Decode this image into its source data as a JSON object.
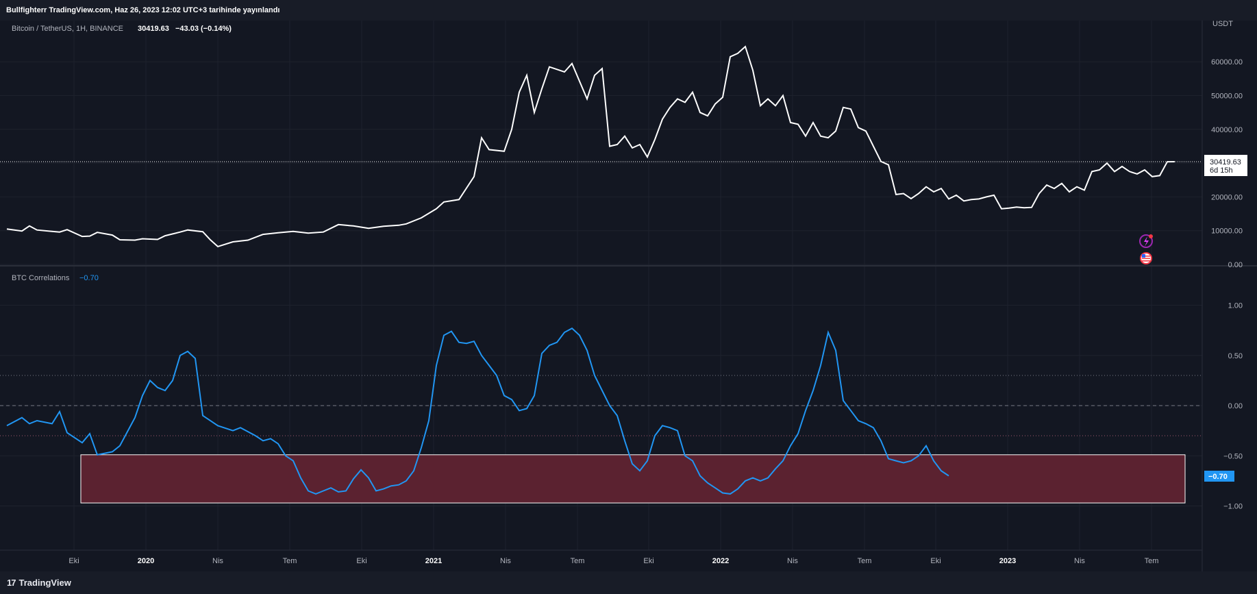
{
  "header": {
    "published_text": "Bullfighterr TradingView.com, Haz 26, 2023 12:02 UTC+3 tarihinde yayınlandı"
  },
  "main_pane": {
    "symbol": "Bitcoin / TetherUS, 1H, BINANCE",
    "last_price": "30419.63",
    "change": "−43.03 (−0.14%)",
    "currency_label": "USDT",
    "price_badge": "30419.63",
    "countdown_badge": "6d 15h",
    "line_color": "#ffffff"
  },
  "indicator_pane": {
    "name": "BTC Correlations",
    "value": "−0.70",
    "badge": "−0.70",
    "line_color": "#2196f3",
    "zone_fill": "#5b2230"
  },
  "footer": {
    "logo_text": "TradingView",
    "logo_mark": "17"
  },
  "icons": [
    "flash-icon",
    "us-flag-icon"
  ],
  "chart_data": [
    {
      "type": "line",
      "title": "Bitcoin / TetherUS, 1H, BINANCE",
      "ylabel": "USDT",
      "ylim": [
        0,
        70000
      ],
      "yticks": [
        "0.00",
        "10000.00",
        "20000.00",
        "30000.00",
        "40000.00",
        "50000.00",
        "60000.00"
      ],
      "xticks": [
        "Eki",
        "2020",
        "Nis",
        "Tem",
        "Eki",
        "2021",
        "Nis",
        "Tem",
        "Eki",
        "2022",
        "Nis",
        "Tem",
        "Eki",
        "2023",
        "Nis",
        "Tem"
      ],
      "x_range": [
        "2019-07",
        "2023-07"
      ],
      "series": [
        {
          "values": [
            [
              0.0,
              10500
            ],
            [
              0.02,
              9900
            ],
            [
              0.03,
              11400
            ],
            [
              0.04,
              10200
            ],
            [
              0.06,
              9800
            ],
            [
              0.07,
              9600
            ],
            [
              0.08,
              10300
            ],
            [
              0.1,
              8300
            ],
            [
              0.11,
              8400
            ],
            [
              0.12,
              9500
            ],
            [
              0.14,
              8700
            ],
            [
              0.15,
              7300
            ],
            [
              0.17,
              7200
            ],
            [
              0.18,
              7600
            ],
            [
              0.2,
              7400
            ],
            [
              0.21,
              8500
            ],
            [
              0.23,
              9600
            ],
            [
              0.24,
              10200
            ],
            [
              0.26,
              9700
            ],
            [
              0.27,
              7300
            ],
            [
              0.28,
              5300
            ],
            [
              0.3,
              6700
            ],
            [
              0.32,
              7200
            ],
            [
              0.34,
              8900
            ],
            [
              0.36,
              9400
            ],
            [
              0.38,
              9800
            ],
            [
              0.4,
              9300
            ],
            [
              0.42,
              9600
            ],
            [
              0.44,
              11800
            ],
            [
              0.46,
              11400
            ],
            [
              0.48,
              10700
            ],
            [
              0.5,
              11300
            ],
            [
              0.52,
              11600
            ],
            [
              0.53,
              12000
            ],
            [
              0.55,
              13800
            ],
            [
              0.57,
              16500
            ],
            [
              0.58,
              18500
            ],
            [
              0.6,
              19200
            ],
            [
              0.62,
              26000
            ],
            [
              0.63,
              37500
            ],
            [
              0.64,
              34000
            ],
            [
              0.66,
              33500
            ],
            [
              0.67,
              40000
            ],
            [
              0.68,
              51000
            ],
            [
              0.69,
              56000
            ],
            [
              0.7,
              45000
            ],
            [
              0.71,
              52000
            ],
            [
              0.72,
              58500
            ],
            [
              0.74,
              57000
            ],
            [
              0.75,
              59500
            ],
            [
              0.77,
              49000
            ],
            [
              0.78,
              56000
            ],
            [
              0.79,
              58000
            ],
            [
              0.8,
              35000
            ],
            [
              0.81,
              35500
            ],
            [
              0.82,
              38000
            ],
            [
              0.83,
              34500
            ],
            [
              0.84,
              35500
            ],
            [
              0.85,
              31800
            ],
            [
              0.86,
              37000
            ],
            [
              0.87,
              43000
            ],
            [
              0.88,
              46500
            ],
            [
              0.89,
              49000
            ],
            [
              0.9,
              48000
            ],
            [
              0.91,
              51000
            ],
            [
              0.92,
              45000
            ],
            [
              0.93,
              44000
            ],
            [
              0.94,
              47500
            ],
            [
              0.95,
              49500
            ],
            [
              0.96,
              61500
            ],
            [
              0.97,
              62500
            ],
            [
              0.98,
              64500
            ],
            [
              0.99,
              57500
            ],
            [
              1.0,
              47000
            ],
            [
              1.01,
              49000
            ],
            [
              1.02,
              47000
            ],
            [
              1.03,
              50000
            ],
            [
              1.04,
              42000
            ],
            [
              1.05,
              41500
            ],
            [
              1.06,
              38000
            ],
            [
              1.07,
              42000
            ],
            [
              1.08,
              38000
            ],
            [
              1.09,
              37500
            ],
            [
              1.1,
              39500
            ],
            [
              1.11,
              46500
            ],
            [
              1.12,
              46000
            ],
            [
              1.13,
              40500
            ],
            [
              1.14,
              39500
            ],
            [
              1.15,
              35000
            ],
            [
              1.16,
              30500
            ],
            [
              1.17,
              29500
            ],
            [
              1.18,
              20700
            ],
            [
              1.19,
              21000
            ],
            [
              1.2,
              19500
            ],
            [
              1.21,
              21000
            ],
            [
              1.22,
              23000
            ],
            [
              1.23,
              21500
            ],
            [
              1.24,
              22500
            ],
            [
              1.25,
              19400
            ],
            [
              1.26,
              20500
            ],
            [
              1.27,
              18800
            ],
            [
              1.28,
              19200
            ],
            [
              1.29,
              19400
            ],
            [
              1.3,
              20000
            ],
            [
              1.31,
              20500
            ],
            [
              1.32,
              16500
            ],
            [
              1.33,
              16700
            ],
            [
              1.34,
              17000
            ],
            [
              1.35,
              16800
            ],
            [
              1.36,
              16900
            ],
            [
              1.37,
              21000
            ],
            [
              1.38,
              23500
            ],
            [
              1.39,
              22500
            ],
            [
              1.4,
              24000
            ],
            [
              1.41,
              21500
            ],
            [
              1.42,
              23000
            ],
            [
              1.43,
              22000
            ],
            [
              1.44,
              27500
            ],
            [
              1.45,
              28000
            ],
            [
              1.46,
              30000
            ],
            [
              1.47,
              27500
            ],
            [
              1.48,
              29000
            ],
            [
              1.49,
              27500
            ],
            [
              1.5,
              26800
            ],
            [
              1.51,
              28000
            ],
            [
              1.52,
              26000
            ],
            [
              1.53,
              26300
            ],
            [
              1.54,
              30400
            ],
            [
              1.55,
              30419.63
            ]
          ]
        }
      ]
    },
    {
      "type": "line",
      "title": "BTC Correlations",
      "ylim": [
        -1.2,
        1.2
      ],
      "yticks": [
        "−1.00",
        "−0.50",
        "0.00",
        "0.50",
        "1.00"
      ],
      "reference_lines": [
        0.3,
        0.0,
        -0.3
      ],
      "highlight_zone": {
        "y_from": -0.97,
        "y_to": -0.49,
        "x_from": "2019-10",
        "x_to": "2023-07"
      },
      "series": [
        {
          "values": [
            [
              0.0,
              -0.2
            ],
            [
              0.02,
              -0.12
            ],
            [
              0.03,
              -0.18
            ],
            [
              0.04,
              -0.15
            ],
            [
              0.06,
              -0.18
            ],
            [
              0.07,
              -0.06
            ],
            [
              0.08,
              -0.27
            ],
            [
              0.1,
              -0.37
            ],
            [
              0.11,
              -0.28
            ],
            [
              0.12,
              -0.49
            ],
            [
              0.14,
              -0.46
            ],
            [
              0.15,
              -0.4
            ],
            [
              0.17,
              -0.12
            ],
            [
              0.18,
              0.1
            ],
            [
              0.19,
              0.25
            ],
            [
              0.2,
              0.18
            ],
            [
              0.21,
              0.15
            ],
            [
              0.22,
              0.25
            ],
            [
              0.23,
              0.5
            ],
            [
              0.24,
              0.54
            ],
            [
              0.25,
              0.47
            ],
            [
              0.26,
              -0.1
            ],
            [
              0.28,
              -0.2
            ],
            [
              0.3,
              -0.25
            ],
            [
              0.31,
              -0.22
            ],
            [
              0.33,
              -0.3
            ],
            [
              0.34,
              -0.35
            ],
            [
              0.35,
              -0.33
            ],
            [
              0.36,
              -0.38
            ],
            [
              0.37,
              -0.5
            ],
            [
              0.38,
              -0.55
            ],
            [
              0.39,
              -0.72
            ],
            [
              0.4,
              -0.85
            ],
            [
              0.41,
              -0.88
            ],
            [
              0.42,
              -0.85
            ],
            [
              0.43,
              -0.82
            ],
            [
              0.44,
              -0.86
            ],
            [
              0.45,
              -0.85
            ],
            [
              0.46,
              -0.73
            ],
            [
              0.47,
              -0.64
            ],
            [
              0.48,
              -0.72
            ],
            [
              0.49,
              -0.85
            ],
            [
              0.5,
              -0.83
            ],
            [
              0.51,
              -0.8
            ],
            [
              0.52,
              -0.79
            ],
            [
              0.53,
              -0.75
            ],
            [
              0.54,
              -0.65
            ],
            [
              0.55,
              -0.42
            ],
            [
              0.56,
              -0.15
            ],
            [
              0.57,
              0.4
            ],
            [
              0.58,
              0.7
            ],
            [
              0.59,
              0.74
            ],
            [
              0.6,
              0.63
            ],
            [
              0.61,
              0.62
            ],
            [
              0.62,
              0.64
            ],
            [
              0.63,
              0.5
            ],
            [
              0.64,
              0.4
            ],
            [
              0.65,
              0.3
            ],
            [
              0.66,
              0.1
            ],
            [
              0.67,
              0.06
            ],
            [
              0.68,
              -0.05
            ],
            [
              0.69,
              -0.03
            ],
            [
              0.7,
              0.1
            ],
            [
              0.71,
              0.52
            ],
            [
              0.72,
              0.6
            ],
            [
              0.73,
              0.63
            ],
            [
              0.74,
              0.73
            ],
            [
              0.75,
              0.77
            ],
            [
              0.76,
              0.7
            ],
            [
              0.77,
              0.55
            ],
            [
              0.78,
              0.3
            ],
            [
              0.79,
              0.15
            ],
            [
              0.8,
              0.0
            ],
            [
              0.81,
              -0.1
            ],
            [
              0.82,
              -0.35
            ],
            [
              0.83,
              -0.58
            ],
            [
              0.84,
              -0.65
            ],
            [
              0.85,
              -0.55
            ],
            [
              0.86,
              -0.3
            ],
            [
              0.87,
              -0.2
            ],
            [
              0.88,
              -0.22
            ],
            [
              0.89,
              -0.25
            ],
            [
              0.9,
              -0.5
            ],
            [
              0.91,
              -0.55
            ],
            [
              0.92,
              -0.7
            ],
            [
              0.93,
              -0.77
            ],
            [
              0.94,
              -0.82
            ],
            [
              0.95,
              -0.87
            ],
            [
              0.96,
              -0.88
            ],
            [
              0.97,
              -0.83
            ],
            [
              0.98,
              -0.75
            ],
            [
              0.99,
              -0.72
            ],
            [
              1.0,
              -0.75
            ],
            [
              1.01,
              -0.72
            ],
            [
              1.02,
              -0.63
            ],
            [
              1.03,
              -0.55
            ],
            [
              1.04,
              -0.4
            ],
            [
              1.05,
              -0.28
            ],
            [
              1.06,
              -0.05
            ],
            [
              1.07,
              0.15
            ],
            [
              1.08,
              0.4
            ],
            [
              1.09,
              0.73
            ],
            [
              1.1,
              0.55
            ],
            [
              1.11,
              0.05
            ],
            [
              1.12,
              -0.05
            ],
            [
              1.13,
              -0.15
            ],
            [
              1.14,
              -0.18
            ],
            [
              1.15,
              -0.22
            ],
            [
              1.16,
              -0.35
            ],
            [
              1.17,
              -0.53
            ],
            [
              1.18,
              -0.55
            ],
            [
              1.19,
              -0.57
            ],
            [
              1.2,
              -0.55
            ],
            [
              1.21,
              -0.5
            ],
            [
              1.22,
              -0.4
            ],
            [
              1.23,
              -0.55
            ],
            [
              1.24,
              -0.65
            ],
            [
              1.25,
              -0.7
            ]
          ]
        }
      ]
    }
  ]
}
